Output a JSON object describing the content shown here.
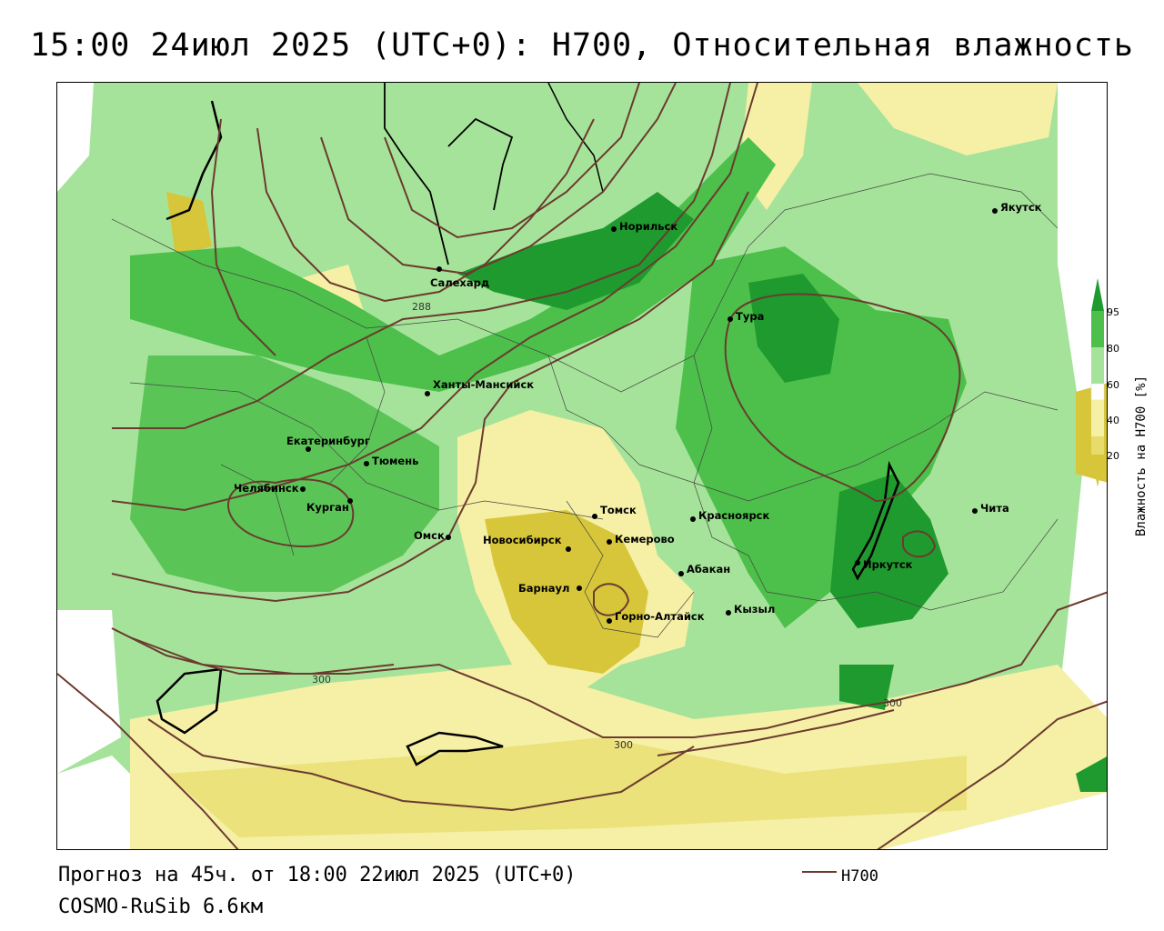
{
  "title": "15:00 24июл 2025 (UTC+0): H700, Относительная влажность",
  "footer": {
    "forecast": "Прогноз на 45ч. от 18:00 22июл 2025 (UTC+0)",
    "model": "COSMO-RuSib 6.6км"
  },
  "legend": {
    "line_label": "H700",
    "line_color": "#6b3b2f"
  },
  "colorbar": {
    "title": "Влажность на H700 [%]",
    "ticks": [
      "95",
      "80",
      "60",
      "40",
      "20"
    ],
    "colors": {
      "c95": "#1f9a2e",
      "c80": "#4cc04a",
      "c60": "#a6e39a",
      "c50": "#ffffff",
      "c40": "#f6f0a6",
      "c20": "#d7c63a"
    }
  },
  "cities": [
    {
      "name": "Якутск"
    },
    {
      "name": "Норильск"
    },
    {
      "name": "Салехард"
    },
    {
      "name": "Тура"
    },
    {
      "name": "Ханты-Мансийск"
    },
    {
      "name": "Екатеринбург"
    },
    {
      "name": "Тюмень"
    },
    {
      "name": "Челябинск"
    },
    {
      "name": "Курган"
    },
    {
      "name": "Омск"
    },
    {
      "name": "Томск"
    },
    {
      "name": "Красноярск"
    },
    {
      "name": "Новосибирск"
    },
    {
      "name": "Кемерово"
    },
    {
      "name": "Абакан"
    },
    {
      "name": "Барнаул"
    },
    {
      "name": "Горно-Алтайск"
    },
    {
      "name": "Кызыл"
    },
    {
      "name": "Иркутск"
    },
    {
      "name": "Чита"
    }
  ],
  "contour_labels": [
    "288",
    "300",
    "300",
    "300"
  ]
}
